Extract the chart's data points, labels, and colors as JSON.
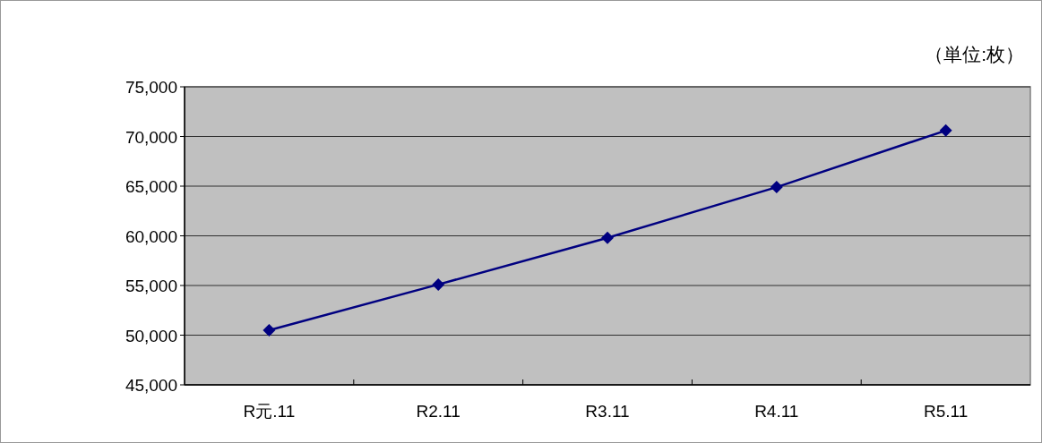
{
  "chart_data": {
    "type": "line",
    "categories": [
      "R元.11",
      "R2.11",
      "R3.11",
      "R4.11",
      "R5.11"
    ],
    "series": [
      {
        "color": "#000080",
        "values": [
          50500,
          55100,
          59800,
          64900,
          70600
        ]
      }
    ],
    "ylim": [
      45000,
      75000
    ],
    "yticks": [
      {
        "value": 45000,
        "label": "45,000"
      },
      {
        "value": 50000,
        "label": "50,000"
      },
      {
        "value": 55000,
        "label": "55,000"
      },
      {
        "value": 60000,
        "label": "60,000"
      },
      {
        "value": 65000,
        "label": "65,000"
      },
      {
        "value": 70000,
        "label": "70,000"
      },
      {
        "value": 75000,
        "label": "75,000"
      }
    ],
    "grid": "y",
    "marker": "diamond",
    "line_style": "solid",
    "annotations": [
      "（単位:枚）"
    ]
  }
}
